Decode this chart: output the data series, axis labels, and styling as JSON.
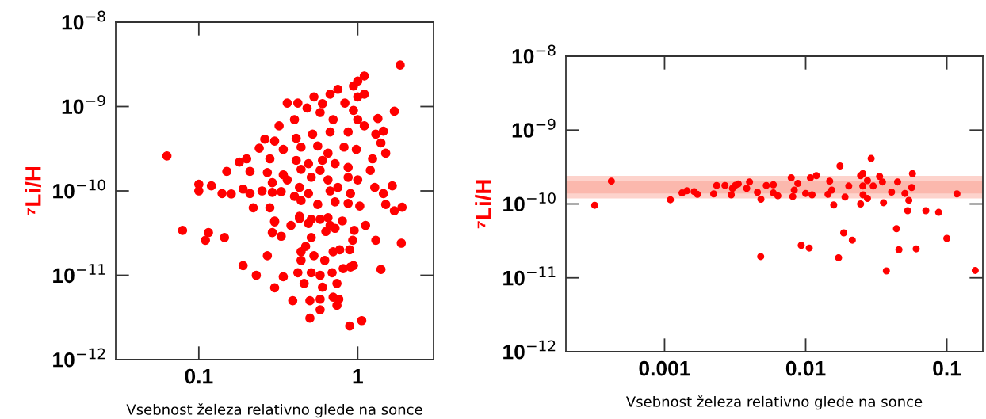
{
  "chart_data": [
    {
      "type": "scatter",
      "xlabel": "Vsebnost železa relativno glede na sonce",
      "ylabel": "⁷Li/H",
      "log": "xy",
      "marker": "circle",
      "grid": false,
      "xlim": [
        0.03,
        3
      ],
      "ylim": [
        1e-12,
        1e-08
      ],
      "xticks": [
        0.1,
        1
      ],
      "yticks": [
        {
          "value": 1e-12,
          "label": "10$^{−12}$"
        },
        {
          "value": 1e-11,
          "label": "10$^{−11}$"
        },
        {
          "value": 1e-10,
          "label": "10$^{−10}$"
        },
        {
          "value": 1e-09,
          "label": "10$^{−9}$"
        },
        {
          "value": 1e-08,
          "label": "10$^{−8}$"
        }
      ],
      "series": [
        {
          "color": "#ff0000",
          "x": [
            0.063,
            1.85,
            1.1,
            1.0,
            0.94,
            0.75,
            0.67,
            1.1,
            1.0,
            0.53,
            0.36,
            0.42,
            0.6,
            0.83,
            1.7,
            1.34,
            0.48,
            0.58,
            0.4,
            1.0,
            0.94,
            0.7,
            0.32,
            1.1,
            1.45,
            1.3,
            0.26,
            0.3,
            0.41,
            0.52,
            0.67,
            0.87,
            1.4,
            0.24,
            0.34,
            0.44,
            0.56,
            0.65,
            0.82,
            0.98,
            1.5,
            0.18,
            0.2,
            0.28,
            0.41,
            0.49,
            0.6,
            0.72,
            1.24,
            0.15,
            0.21,
            0.27,
            0.34,
            0.44,
            0.58,
            0.87,
            1.2,
            0.29,
            0.36,
            0.51,
            0.65,
            0.87,
            1.0,
            0.1,
            0.1,
            0.12,
            0.14,
            0.16,
            0.19,
            0.21,
            0.25,
            0.29,
            0.33,
            0.43,
            0.4,
            0.49,
            0.67,
            0.75,
            0.9,
            1.28,
            1.45,
            1.65,
            0.22,
            0.28,
            0.44,
            0.56,
            0.72,
            0.87,
            1.03,
            1.5,
            1.9,
            1.7,
            0.3,
            0.43,
            0.51,
            0.65,
            0.8,
            0.079,
            0.115,
            0.11,
            0.145,
            0.19,
            0.23,
            0.3,
            0.29,
            0.33,
            0.27,
            0.3,
            0.34,
            0.38,
            0.43,
            0.49,
            0.58,
            0.51,
            0.44,
            0.47,
            0.53,
            0.44,
            0.51,
            0.42,
            0.46,
            0.58,
            0.6,
            0.62,
            0.67,
            0.72,
            0.63,
            0.7,
            0.77,
            0.69,
            0.74,
            0.81,
            0.9,
            0.94,
            0.89,
            0.93,
            0.95,
            1.12,
            1.3,
            1.88,
            1.4,
            0.39,
            0.5,
            0.58,
            0.58,
            0.7,
            0.76,
            0.74,
            0.5,
            0.89,
            1.06
          ],
          "values": [
            2.6e-10,
            3.1e-09,
            2.3e-09,
            2e-09,
            1.75e-09,
            1.6e-09,
            1.4e-09,
            1.4e-09,
            1.3e-09,
            1.3e-09,
            1.1e-09,
            1.1e-09,
            1.08e-09,
            1.1e-09,
            8.8e-10,
            7.2e-10,
            9.6e-10,
            8.5e-10,
            7e-10,
            7e-10,
            9e-10,
            7e-10,
            5.9e-10,
            5.9e-10,
            5.1e-10,
            4.7e-10,
            4.1e-10,
            3.9e-10,
            4.2e-10,
            4.7e-10,
            5e-10,
            5e-10,
            3.7e-10,
            3.2e-10,
            3.1e-10,
            3.3e-10,
            3.4e-10,
            2.8e-10,
            3.3e-10,
            3.1e-10,
            2.8e-10,
            2.2e-10,
            2.4e-10,
            2.4e-10,
            2.3e-10,
            2.1e-10,
            2.3e-10,
            2.1e-10,
            2.4e-10,
            1.7e-10,
            1.7e-10,
            1.65e-10,
            1.55e-10,
            1.8e-10,
            1.75e-10,
            1.9e-10,
            1.75e-10,
            1.25e-10,
            1.35e-10,
            1.45e-10,
            1.35e-10,
            1.45e-10,
            1.35e-10,
            1.2e-10,
            1e-10,
            1.15e-10,
            9.3e-11,
            9.2e-11,
            1.05e-10,
            9.3e-11,
            1e-10,
            9.6e-11,
            9.8e-11,
            1.1e-10,
            8.6e-11,
            9.3e-11,
            1e-10,
            1.1e-10,
            9.3e-11,
            1.1e-10,
            9.3e-11,
            1.15e-10,
            6.3e-11,
            6.3e-11,
            7.7e-11,
            6.9e-11,
            7.4e-11,
            7.1e-11,
            6.6e-11,
            6.9e-11,
            6.4e-11,
            5.8e-11,
            4.4e-11,
            5e-11,
            4.6e-11,
            4.8e-11,
            4.4e-11,
            3.4e-11,
            3.2e-11,
            2.6e-11,
            2.8e-11,
            1.3e-11,
            1e-11,
            4.3e-11,
            3.2e-11,
            2.9e-11,
            1.7e-11,
            7.1e-12,
            9.6e-12,
            3.9e-11,
            4.7e-11,
            4.1e-11,
            4.6e-11,
            2.8e-11,
            1.9e-11,
            2.2e-11,
            1.7e-11,
            1.5e-11,
            1.07e-11,
            1.07e-11,
            8e-12,
            1e-11,
            7.2e-12,
            1.5e-11,
            3.9e-11,
            3.6e-11,
            3.3e-11,
            1.9e-11,
            2e-11,
            1.07e-11,
            8e-12,
            1.2e-11,
            1.25e-11,
            1.3e-11,
            2e-11,
            2.6e-11,
            3.4e-11,
            3.9e-11,
            2.6e-11,
            2.4e-11,
            1.17e-11,
            5e-12,
            5e-12,
            5.2e-12,
            3.9e-12,
            5.5e-12,
            5.2e-12,
            4.4e-12,
            3.1e-12,
            2.5e-12,
            2.9e-12
          ]
        }
      ]
    },
    {
      "type": "scatter",
      "xlabel": "Vsebnost železa relativno glede na sonce",
      "ylabel": "⁷Li/H",
      "log": "xy",
      "marker": "circle",
      "grid": false,
      "xlim": [
        0.0002,
        0.18
      ],
      "ylim": [
        1e-12,
        1e-08
      ],
      "xticks": [
        0.001,
        0.01,
        0.1
      ],
      "yticks": [
        {
          "value": 1e-12,
          "label": "10$^{−12}$"
        },
        {
          "value": 1e-11,
          "label": "10$^{−11}$"
        },
        {
          "value": 1e-10,
          "label": "10$^{−10}$"
        },
        {
          "value": 1e-09,
          "label": "10$^{−9}$"
        },
        {
          "value": 1e-08,
          "label": "10$^{−8}$"
        }
      ],
      "bands": [
        {
          "axis": "y",
          "from": 1.19e-10,
          "to": 2.4e-10,
          "color": "#fdd3cc"
        },
        {
          "axis": "y",
          "from": 1.39e-10,
          "to": 2.02e-10,
          "color": "#fbb8ad"
        }
      ],
      "series": [
        {
          "color": "#ff0000",
          "x": [
            0.00032,
            0.00042,
            0.0011,
            0.00133,
            0.00144,
            0.00162,
            0.00171,
            0.00223,
            0.00234,
            0.00268,
            0.00297,
            0.00303,
            0.00318,
            0.00333,
            0.00382,
            0.004,
            0.00455,
            0.00482,
            0.00526,
            0.0059,
            0.0059,
            0.00635,
            0.0079,
            0.0081,
            0.0083,
            0.0088,
            0.01,
            0.0108,
            0.0111,
            0.0119,
            0.0144,
            0.0148,
            0.0153,
            0.0158,
            0.0175,
            0.019,
            0.0202,
            0.0245,
            0.0245,
            0.0254,
            0.0254,
            0.0255,
            0.0274,
            0.0274,
            0.0291,
            0.0301,
            0.0334,
            0.035,
            0.0356,
            0.0406,
            0.0448,
            0.0505,
            0.0538,
            0.0528,
            0.0564,
            0.0571,
            0.071,
            0.0875,
            0.118,
            0.0048,
            0.0093,
            0.0106,
            0.0171,
            0.0186,
            0.0214,
            0.0373,
            0.044,
            0.0458,
            0.0607,
            0.1,
            0.159
          ],
          "values": [
            9.6e-11,
            2.04e-10,
            1.14e-10,
            1.41e-10,
            1.51e-10,
            1.47e-10,
            1.35e-10,
            1.37e-10,
            1.78e-10,
            1.78e-10,
            1.33e-10,
            1.63e-10,
            1.79e-10,
            1.87e-10,
            1.63e-10,
            1.99e-10,
            1.44e-10,
            1.16e-10,
            1.78e-10,
            1.82e-10,
            1.41e-10,
            1.29e-10,
            2.26e-10,
            1.26e-10,
            1.54e-10,
            1.9e-10,
            1.39e-10,
            2.26e-10,
            1.33e-10,
            2.42e-10,
            1.35e-10,
            2.04e-10,
            1.54e-10,
            9.7e-11,
            3.27e-10,
            1.24e-10,
            1.75e-10,
            1e-10,
            2.42e-10,
            2.57e-10,
            1.75e-10,
            1.33e-10,
            2.07e-10,
            1.19e-10,
            4.13e-10,
            1.75e-10,
            2.36e-10,
            1.99e-10,
            1.04e-10,
            1.45e-10,
            1.99e-10,
            1.39e-10,
            1.12e-10,
            8.1e-11,
            1.67e-10,
            2.57e-10,
            8.1e-11,
            7.7e-11,
            1.37e-10,
            1.94e-11,
            2.75e-11,
            2.53e-11,
            1.87e-11,
            4.06e-11,
            3.24e-11,
            1.24e-11,
            4.62e-11,
            2.4e-11,
            2.47e-11,
            3.42e-11,
            1.26e-11
          ]
        }
      ]
    }
  ]
}
